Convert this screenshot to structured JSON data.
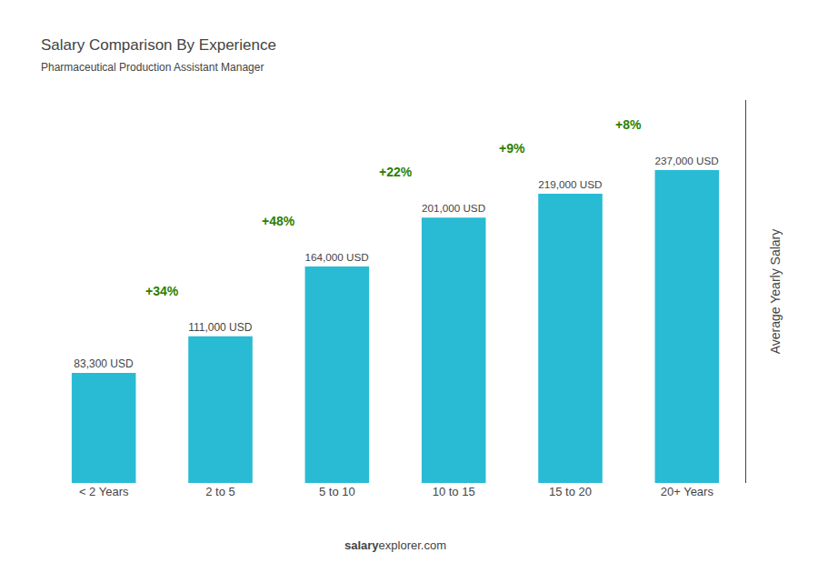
{
  "chart_data": {
    "type": "bar",
    "title": "Salary Comparison By Experience",
    "subtitle": "Pharmaceutical Production Assistant Manager",
    "categories": [
      "< 2 Years",
      "2 to 5",
      "5 to 10",
      "10 to 15",
      "15 to 20",
      "20+ Years"
    ],
    "values": [
      83300,
      111000,
      164000,
      201000,
      219000,
      237000
    ],
    "value_labels": [
      "83,300 USD",
      "111,000 USD",
      "164,000 USD",
      "201,000 USD",
      "219,000 USD",
      "237,000 USD"
    ],
    "data_labels": true,
    "annotations": [
      "+34%",
      "+48%",
      "+22%",
      "+9%",
      "+8%"
    ],
    "ylabel": "Average Yearly Salary",
    "source": [
      "salary",
      "explorer.com"
    ],
    "color": "#29bbd4",
    "ylim": [
      0,
      290000
    ],
    "tick_labels": "x",
    "grid": false
  }
}
